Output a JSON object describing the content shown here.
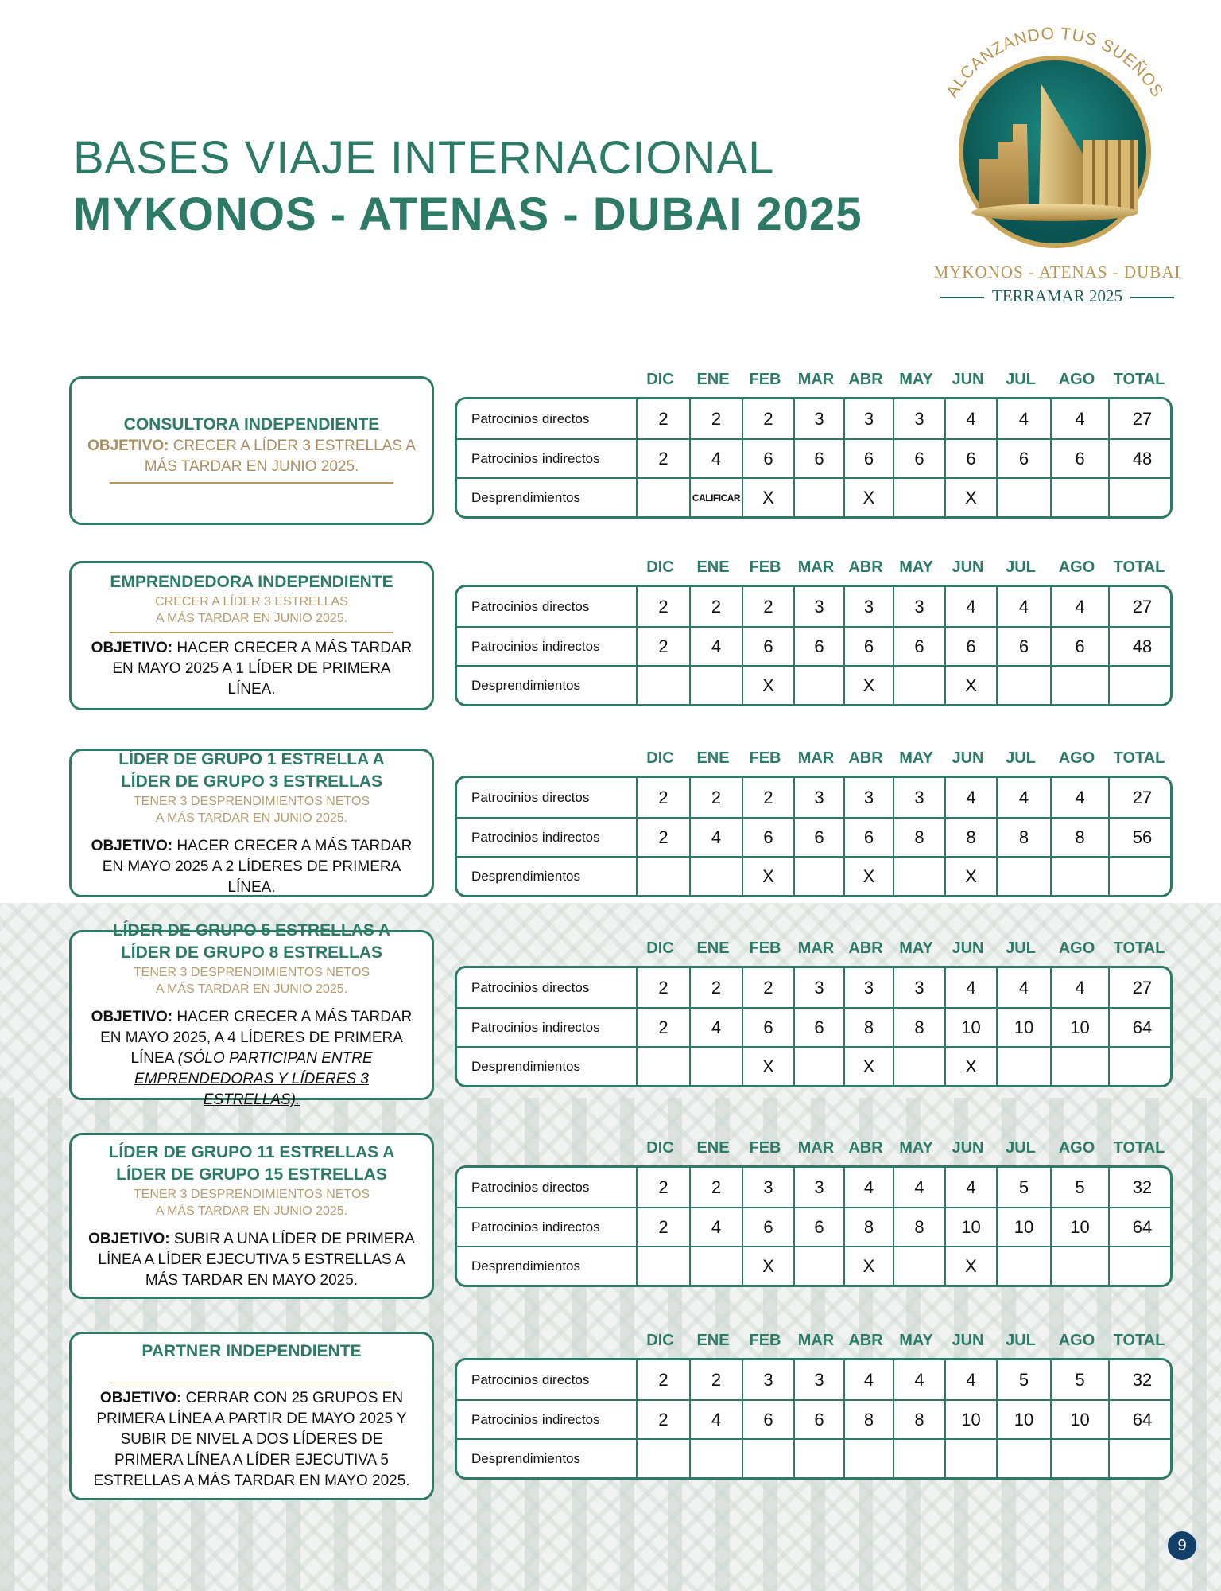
{
  "header": {
    "title_line1": "BASES VIAJE INTERNACIONAL",
    "title_line2": "MYKONOS - ATENAS - DUBAI 2025"
  },
  "logo": {
    "arc_text": "ALCANZANDO TUS SUEÑOS",
    "destinations": "MYKONOS - ATENAS - DUBAI",
    "brand": "TERRAMAR 2025"
  },
  "colors": {
    "primary": "#2d7a67",
    "gold": "#b8975c",
    "page_badge": "#12406b"
  },
  "table_headers": [
    "",
    "DIC",
    "ENE",
    "FEB",
    "MAR",
    "ABR",
    "MAY",
    "JUN",
    "JUL",
    "AGO",
    "TOTAL"
  ],
  "sections": [
    {
      "layout": "objective-first",
      "title": [
        "CONSULTORA INDEPENDIENTE"
      ],
      "subtitle": [],
      "objective_label": "OBJETIVO:",
      "objective_text": "CRECER A LÍDER 3 ESTRELLAS A MÁS TARDAR EN JUNIO 2025.",
      "objective_note": "",
      "rows": [
        {
          "label": "Patrocinios directos",
          "values": [
            "2",
            "2",
            "2",
            "3",
            "3",
            "3",
            "4",
            "4",
            "4",
            "27"
          ]
        },
        {
          "label": "Patrocinios indirectos",
          "values": [
            "2",
            "4",
            "6",
            "6",
            "6",
            "6",
            "6",
            "6",
            "6",
            "48"
          ]
        },
        {
          "label": "Desprendimientos",
          "values": [
            "",
            "CALIFICAR",
            "X",
            "",
            "X",
            "",
            "X",
            "",
            "",
            ""
          ]
        }
      ]
    },
    {
      "layout": "standard",
      "title": [
        "EMPRENDEDORA INDEPENDIENTE"
      ],
      "subtitle": [
        "CRECER A LÍDER 3 ESTRELLAS",
        "A MÁS TARDAR EN JUNIO 2025."
      ],
      "objective_label": "OBJETIVO:",
      "objective_text": "HACER CRECER A MÁS TARDAR EN MAYO 2025 A 1 LÍDER DE PRIMERA LÍNEA.",
      "objective_note": "",
      "rows": [
        {
          "label": "Patrocinios directos",
          "values": [
            "2",
            "2",
            "2",
            "3",
            "3",
            "3",
            "4",
            "4",
            "4",
            "27"
          ]
        },
        {
          "label": "Patrocinios indirectos",
          "values": [
            "2",
            "4",
            "6",
            "6",
            "6",
            "6",
            "6",
            "6",
            "6",
            "48"
          ]
        },
        {
          "label": "Desprendimientos",
          "values": [
            "",
            "",
            "X",
            "",
            "X",
            "",
            "X",
            "",
            "",
            ""
          ]
        }
      ]
    },
    {
      "layout": "standard",
      "title": [
        "LÍDER DE GRUPO 1 ESTRELLA  A",
        "LÍDER DE GRUPO 3 ESTRELLAS"
      ],
      "subtitle": [
        "TENER 3 DESPRENDIMIENTOS NETOS",
        "A MÁS TARDAR EN JUNIO 2025."
      ],
      "objective_label": "OBJETIVO:",
      "objective_text": "HACER CRECER A MÁS TARDAR EN MAYO 2025 A 2 LÍDERES DE PRIMERA LÍNEA.",
      "objective_note": "",
      "rows": [
        {
          "label": "Patrocinios directos",
          "values": [
            "2",
            "2",
            "2",
            "3",
            "3",
            "3",
            "4",
            "4",
            "4",
            "27"
          ]
        },
        {
          "label": "Patrocinios indirectos",
          "values": [
            "2",
            "4",
            "6",
            "6",
            "6",
            "8",
            "8",
            "8",
            "8",
            "56"
          ]
        },
        {
          "label": "Desprendimientos",
          "values": [
            "",
            "",
            "X",
            "",
            "X",
            "",
            "X",
            "",
            "",
            ""
          ]
        }
      ]
    },
    {
      "layout": "standard",
      "title": [
        "LÍDER DE GRUPO 5 ESTRELLAS A",
        "LÍDER DE GRUPO 8 ESTRELLAS"
      ],
      "subtitle": [
        "TENER 3 DESPRENDIMIENTOS NETOS",
        "A MÁS TARDAR EN JUNIO 2025."
      ],
      "objective_label": "OBJETIVO:",
      "objective_text": "HACER CRECER A MÁS TARDAR EN MAYO 2025, A 4 LÍDERES DE PRIMERA LÍNEA ",
      "objective_note": "(SÓLO PARTICIPAN ENTRE EMPRENDEDORAS Y LÍDERES 3 ESTRELLAS).",
      "rows": [
        {
          "label": "Patrocinios directos",
          "values": [
            "2",
            "2",
            "2",
            "3",
            "3",
            "3",
            "4",
            "4",
            "4",
            "27"
          ]
        },
        {
          "label": "Patrocinios indirectos",
          "values": [
            "2",
            "4",
            "6",
            "6",
            "8",
            "8",
            "10",
            "10",
            "10",
            "64"
          ]
        },
        {
          "label": "Desprendimientos",
          "values": [
            "",
            "",
            "X",
            "",
            "X",
            "",
            "X",
            "",
            "",
            ""
          ]
        }
      ]
    },
    {
      "layout": "standard",
      "title": [
        "LÍDER DE GRUPO 11 ESTRELLAS A",
        "LÍDER DE GRUPO 15 ESTRELLAS"
      ],
      "subtitle": [
        "TENER 3 DESPRENDIMIENTOS NETOS",
        "A MÁS TARDAR EN JUNIO 2025."
      ],
      "objective_label": "OBJETIVO:",
      "objective_text": "SUBIR A UNA LÍDER DE PRIMERA LÍNEA A LÍDER EJECUTIVA 5 ESTRELLAS A MÁS TARDAR EN MAYO 2025.",
      "objective_note": "",
      "rows": [
        {
          "label": "Patrocinios directos",
          "values": [
            "2",
            "2",
            "3",
            "3",
            "4",
            "4",
            "4",
            "5",
            "5",
            "32"
          ]
        },
        {
          "label": "Patrocinios indirectos",
          "values": [
            "2",
            "4",
            "6",
            "6",
            "8",
            "8",
            "10",
            "10",
            "10",
            "64"
          ]
        },
        {
          "label": "Desprendimientos",
          "values": [
            "",
            "",
            "X",
            "",
            "X",
            "",
            "X",
            "",
            "",
            ""
          ]
        }
      ]
    },
    {
      "layout": "spacer",
      "title": [
        "PARTNER INDEPENDIENTE"
      ],
      "subtitle": [],
      "objective_label": "OBJETIVO:",
      "objective_text": "CERRAR CON 25 GRUPOS EN PRIMERA LÍNEA A PARTIR DE MAYO 2025 Y SUBIR DE NIVEL A DOS LÍDERES DE PRIMERA LÍNEA A LÍDER EJECUTIVA 5 ESTRELLAS A MÁS TARDAR EN MAYO 2025.",
      "objective_note": "",
      "rows": [
        {
          "label": "Patrocinios directos",
          "values": [
            "2",
            "2",
            "3",
            "3",
            "4",
            "4",
            "4",
            "5",
            "5",
            "32"
          ]
        },
        {
          "label": "Patrocinios indirectos",
          "values": [
            "2",
            "4",
            "6",
            "6",
            "8",
            "8",
            "10",
            "10",
            "10",
            "64"
          ]
        },
        {
          "label": "Desprendimientos",
          "values": [
            "",
            "",
            "",
            "",
            "",
            "",
            "",
            "",
            "",
            ""
          ]
        }
      ]
    }
  ],
  "page_number": "9"
}
